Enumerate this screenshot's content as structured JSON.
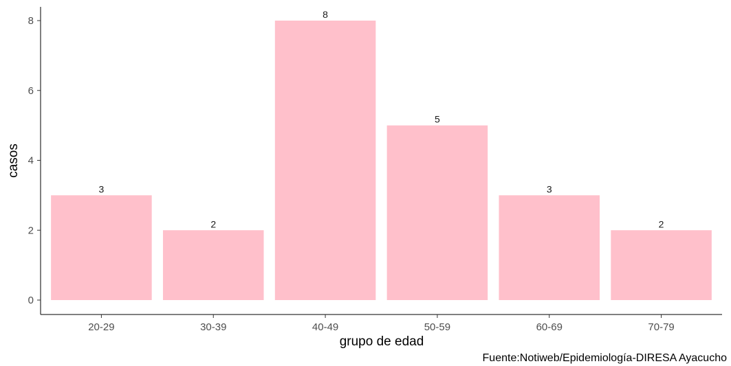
{
  "chart_data": {
    "type": "bar",
    "categories": [
      "20-29",
      "30-39",
      "40-49",
      "50-59",
      "60-69",
      "70-79"
    ],
    "values": [
      3,
      2,
      8,
      5,
      3,
      2
    ],
    "xlabel": "grupo de edad",
    "ylabel": "casos",
    "ylim": [
      0,
      8
    ],
    "yticks": [
      0,
      2,
      4,
      6,
      8
    ],
    "bar_color": "#ffc0cb",
    "grid": false,
    "caption": "Fuente:Notiweb/Epidemiología-DIRESA Ayacucho"
  }
}
